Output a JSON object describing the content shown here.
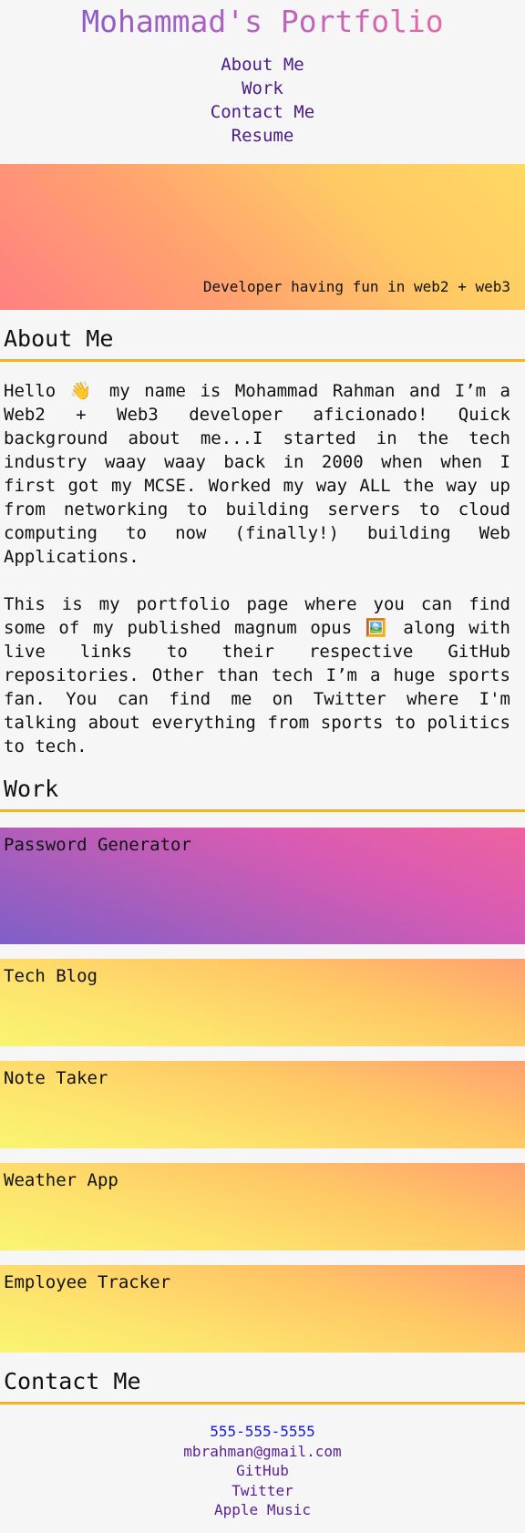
{
  "header": {
    "title": "Mohammad's Portfolio",
    "nav": [
      "About Me",
      "Work",
      "Contact Me",
      "Resume"
    ]
  },
  "hero": {
    "tagline": "Developer having fun in web2 + web3"
  },
  "about": {
    "heading": "About Me",
    "paragraphs": [
      "Hello 👋 my name is Mohammad Rahman and I’m a Web2 + Web3 developer aficionado! Quick background about me...I started in the tech industry waay waay back in 2000 when when I first got my MCSE. Worked my way ALL the way up from networking to building servers to cloud computing to now (finally!) building Web Applications.",
      "This is my portfolio page where you can find some of my published magnum opus 🖼️ along with live links to their respective GitHub repositories. Other than tech I’m a huge sports fan. You can find me on Twitter where I'm talking about everything from sports to politics to tech."
    ]
  },
  "work": {
    "heading": "Work",
    "projects": [
      "Password Generator",
      "Tech Blog",
      "Note Taker",
      "Weather App",
      "Employee Tracker"
    ]
  },
  "contact": {
    "heading": "Contact Me",
    "phone": "555-555-5555",
    "email": "mbrahman@gmail.com",
    "links": [
      "GitHub",
      "Twitter",
      "Apple Music"
    ]
  },
  "colors": {
    "accent_underline": "#f4b41f",
    "nav_link": "#4a1a86",
    "phone_link": "#1a1ad6"
  }
}
